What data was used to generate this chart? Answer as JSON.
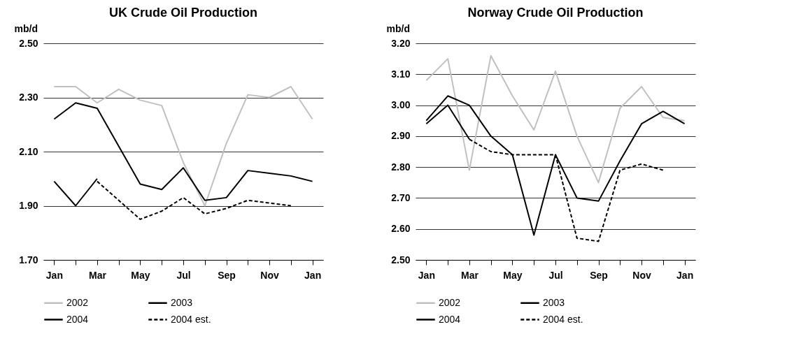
{
  "chart_data": [
    {
      "type": "line",
      "title": "UK Crude Oil Production",
      "ylabel": "mb/d",
      "categories": [
        "Jan",
        null,
        "Mar",
        null,
        "May",
        null,
        "Jul",
        null,
        "Sep",
        null,
        "Nov",
        null,
        "Jan"
      ],
      "series": [
        {
          "name": "2002",
          "color": "#c0c0c0",
          "line_style": "solid",
          "values": [
            2.34,
            2.34,
            2.28,
            2.33,
            2.29,
            2.27,
            2.06,
            1.9,
            2.13,
            2.31,
            2.3,
            2.34,
            2.22
          ]
        },
        {
          "name": "2003",
          "color": "#000000",
          "line_style": "solid",
          "values": [
            2.22,
            2.28,
            2.26,
            2.12,
            1.98,
            1.96,
            2.04,
            1.92,
            1.93,
            2.03,
            2.02,
            2.01,
            1.99
          ]
        },
        {
          "name": "2004",
          "color": "#000000",
          "line_style": "solid",
          "values": [
            1.99,
            1.9,
            2.0,
            null,
            null,
            null,
            null,
            null,
            null,
            null,
            null,
            null,
            null
          ]
        },
        {
          "name": "2004 est.",
          "color": "#000000",
          "line_style": "dashed",
          "values": [
            null,
            null,
            1.99,
            1.92,
            1.85,
            1.88,
            1.93,
            1.87,
            1.89,
            1.92,
            1.91,
            1.9,
            null
          ]
        }
      ],
      "ylim": [
        1.7,
        2.5
      ],
      "yticks": [
        {
          "value": 1.7,
          "label": "1.70"
        },
        {
          "value": 1.9,
          "label": "1.90"
        },
        {
          "value": 2.1,
          "label": "2.10"
        },
        {
          "value": 2.3,
          "label": "2.30"
        },
        {
          "value": 2.5,
          "label": "2.50"
        }
      ],
      "grid": "y",
      "legend": "bottom"
    },
    {
      "type": "line",
      "title": "Norway Crude Oil Production",
      "ylabel": "mb/d",
      "categories": [
        "Jan",
        null,
        "Mar",
        null,
        "May",
        null,
        "Jul",
        null,
        "Sep",
        null,
        "Nov",
        null,
        "Jan"
      ],
      "series": [
        {
          "name": "2002",
          "color": "#c0c0c0",
          "line_style": "solid",
          "values": [
            3.08,
            3.15,
            2.79,
            3.16,
            3.03,
            2.92,
            3.11,
            2.9,
            2.75,
            2.99,
            3.06,
            2.96,
            2.95
          ]
        },
        {
          "name": "2003",
          "color": "#000000",
          "line_style": "solid",
          "values": [
            2.95,
            3.03,
            3.0,
            2.9,
            2.84,
            2.58,
            2.84,
            2.7,
            2.69,
            2.82,
            2.94,
            2.98,
            2.94
          ]
        },
        {
          "name": "2004",
          "color": "#000000",
          "line_style": "solid",
          "values": [
            2.94,
            3.0,
            2.89,
            null,
            null,
            null,
            null,
            null,
            null,
            null,
            null,
            null,
            null
          ]
        },
        {
          "name": "2004 est.",
          "color": "#000000",
          "line_style": "dashed",
          "values": [
            null,
            null,
            2.89,
            2.85,
            2.84,
            2.84,
            2.84,
            2.57,
            2.56,
            2.79,
            2.81,
            2.79,
            null
          ]
        }
      ],
      "ylim": [
        2.5,
        3.2
      ],
      "yticks": [
        {
          "value": 2.5,
          "label": "2.50"
        },
        {
          "value": 2.6,
          "label": "2.60"
        },
        {
          "value": 2.7,
          "label": "2.70"
        },
        {
          "value": 2.8,
          "label": "2.80"
        },
        {
          "value": 2.9,
          "label": "2.90"
        },
        {
          "value": 3.0,
          "label": "3.00"
        },
        {
          "value": 3.1,
          "label": "3.10"
        },
        {
          "value": 3.2,
          "label": "3.20"
        }
      ],
      "grid": "y",
      "legend": "bottom"
    }
  ]
}
